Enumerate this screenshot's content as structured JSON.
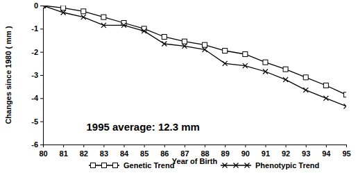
{
  "chart_data": {
    "type": "line",
    "y_label": "Changes since 1980 ( mm )",
    "x_label": "Year of Birth",
    "annotation": "1995 average: 12.3 mm",
    "x": [
      80,
      81,
      82,
      83,
      84,
      85,
      86,
      87,
      88,
      89,
      90,
      91,
      92,
      93,
      94,
      95
    ],
    "series": [
      {
        "name": "Genetic Trend",
        "color": "#000000",
        "marker": "square",
        "line_style": "solid",
        "values": [
          0,
          -0.1,
          -0.25,
          -0.5,
          -0.75,
          -1.0,
          -1.35,
          -1.55,
          -1.7,
          -1.95,
          -2.1,
          -2.45,
          -2.75,
          -3.1,
          -3.45,
          -3.85
        ]
      },
      {
        "name": "Phenotypic Trend",
        "color": "#000000",
        "marker": "x",
        "line_style": "solid",
        "values": [
          0,
          -0.3,
          -0.5,
          -0.85,
          -0.85,
          -1.1,
          -1.65,
          -1.75,
          -1.9,
          -2.5,
          -2.6,
          -2.85,
          -3.2,
          -3.65,
          -4.0,
          -4.35
        ]
      }
    ],
    "xlim": [
      80,
      95
    ],
    "xticks": [
      80,
      81,
      82,
      83,
      84,
      85,
      86,
      87,
      88,
      89,
      90,
      91,
      92,
      93,
      94,
      95
    ],
    "ylim": [
      -6,
      0
    ],
    "yticks": [
      0,
      -1,
      -2,
      -3,
      -4,
      -5,
      -6
    ],
    "grid": false,
    "legend": "bottom"
  }
}
